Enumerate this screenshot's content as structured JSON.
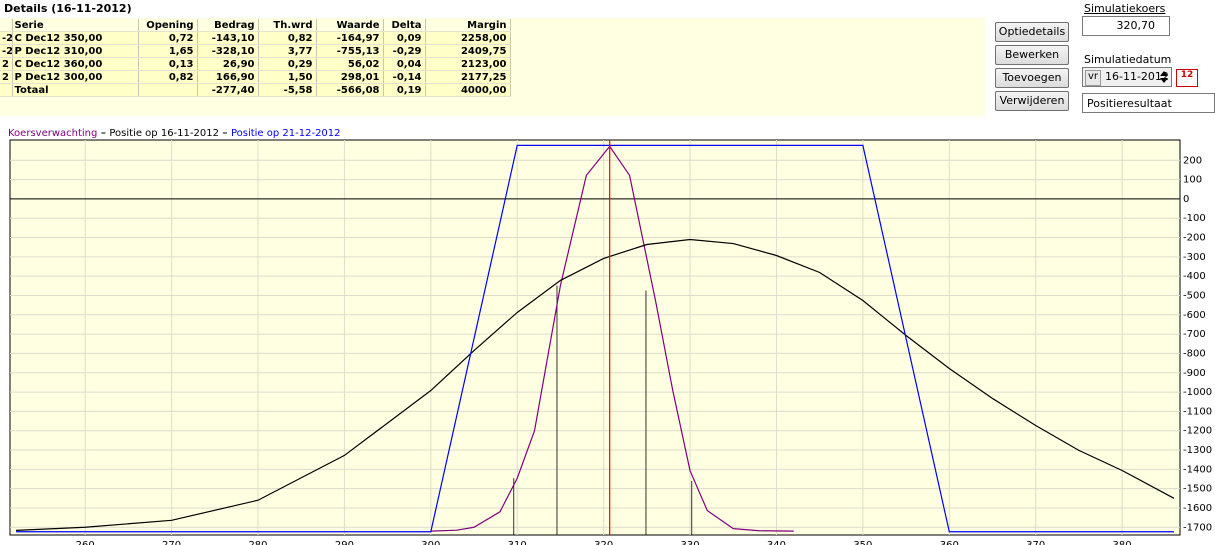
{
  "details": {
    "title": "Details (16-11-2012)",
    "header": [
      null,
      "Serie",
      "Opening",
      "Bedrag",
      "Th.wrd",
      "Waarde",
      "Delta",
      "Margin"
    ],
    "rows": [
      [
        "-2",
        "C Dec12 350,00",
        "0,72",
        "-143,10",
        "0,82",
        "-164,97",
        "0,09",
        "2258,00"
      ],
      [
        "-2",
        "P Dec12 310,00",
        "1,65",
        "-328,10",
        "3,77",
        "-755,13",
        "-0,29",
        "2409,75"
      ],
      [
        "2",
        "C Dec12 360,00",
        "0,13",
        "26,90",
        "0,29",
        "56,02",
        "0,04",
        "2123,00"
      ],
      [
        "2",
        "P Dec12 300,00",
        "0,82",
        "166,90",
        "1,50",
        "298,01",
        "-0,14",
        "2177,25"
      ],
      [
        null,
        "Totaal",
        null,
        "-277,40",
        "-5,58",
        "-566,08",
        "0,19",
        "4000,00"
      ]
    ]
  },
  "controls": {
    "buttons": [
      "Optiedetails",
      "Bewerken",
      "Toevoegen",
      "Verwijderen"
    ],
    "price_label": "Simulatiekoers",
    "price": "320,70",
    "date_label": "Simulatiedatum",
    "day": "vr",
    "date": "16-11-2012",
    "calendar_icon": "12",
    "view": "Positieresultaat"
  },
  "chart_data": {
    "type": "line",
    "grid": true,
    "background": "#ffffe1",
    "marker_price": 320.7,
    "marker_color": "#ff0000",
    "xlim": [
      251.3,
      386.7
    ],
    "xticks": [
      260,
      270,
      280,
      290,
      300,
      310,
      320,
      330,
      340,
      350,
      360,
      370,
      380
    ],
    "ylim": [
      -1740,
      305
    ],
    "yticks": [
      200,
      100,
      0,
      -100,
      -200,
      -300,
      -400,
      -500,
      -600,
      -700,
      -800,
      -900,
      -1000,
      -1100,
      -1200,
      -1300,
      -1400,
      -1500,
      -1600,
      -1700
    ],
    "series": [
      {
        "name": "Koersverwachting",
        "color": "#800080",
        "x": [
          300,
          303,
          305,
          308,
          310,
          312,
          315,
          318,
          320.7,
          323,
          326,
          328,
          330,
          332,
          335,
          338,
          342
        ],
        "values": [
          -1720,
          -1715,
          -1700,
          -1620,
          -1446,
          -1200,
          -448,
          122,
          272,
          122,
          -526,
          -992,
          -1407,
          -1614,
          -1707,
          -1718,
          -1720
        ]
      },
      {
        "name": "Positie op 16-11-2012",
        "color": "#000000",
        "x": [
          252,
          260,
          270,
          280,
          290,
          300,
          305,
          310,
          315,
          320,
          325,
          330,
          335,
          340,
          345,
          350,
          355,
          360,
          365,
          370,
          375,
          380,
          386
        ],
        "values": [
          -1716,
          -1700,
          -1664,
          -1560,
          -1328,
          -992,
          -785,
          -588,
          -422,
          -308,
          -236,
          -210,
          -231,
          -293,
          -381,
          -526,
          -707,
          -878,
          -1033,
          -1173,
          -1302,
          -1406,
          -1550
        ]
      },
      {
        "name": "Positie op 21-12-2012",
        "color": "#0000ff",
        "x": [
          252,
          300,
          310,
          350,
          360,
          386
        ],
        "values": [
          -1723,
          -1723,
          277,
          277,
          -1723,
          -1723
        ]
      }
    ],
    "vlines": {
      "color": "#000000",
      "x": [
        309.6,
        314.6,
        324.9,
        330.2
      ],
      "values": [
        -1446,
        -448,
        -474,
        -1460
      ]
    }
  }
}
